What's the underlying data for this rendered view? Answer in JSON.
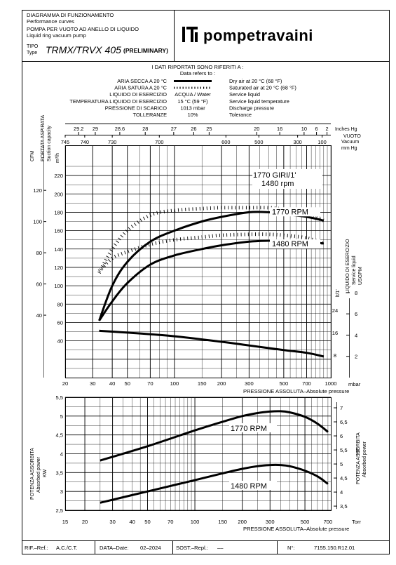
{
  "header": {
    "title_it": "DIAGRAMMA DI FUNZIONAMENTO",
    "title_en": "Performance curves",
    "subtitle_it": "POMPA PER VUOTO AD ANELLO DI LIQUIDO",
    "subtitle_en": "Liquid ring vacuum pump",
    "type_label_it": "TIPO",
    "type_label_en": "Type",
    "model": "TRMX/TRVX 405",
    "model_note": "(PRELIMINARY)",
    "logo_text": "pompetravaini"
  },
  "conditions": {
    "heading": "I DATI RIPORTATI SONO RIFERITI A :",
    "heading_en": "Data refers to :",
    "rows": [
      {
        "it": "ARIA SECCA A 20 °C",
        "value": "",
        "en": "Dry air at 20 °C (68 °F)",
        "line": "solid"
      },
      {
        "it": "ARIA SATURA A 20 °C",
        "value": "",
        "en": "Saturated air at 20 °C (68 °F)",
        "line": "dashed"
      },
      {
        "it": "LIQUIDO DI ESERCIZIO",
        "value": "ACQUA / Water",
        "en": "Service liquid",
        "line": ""
      },
      {
        "it": "TEMPERATURA LIQUIDO DI ESERCIZIO",
        "value": "15 °C (59 °F)",
        "en": "Service liquid temperature",
        "line": ""
      },
      {
        "it": "PRESSIONE DI SCARICO",
        "value": "1013 mbar",
        "en": "Discharge pressure",
        "line": ""
      },
      {
        "it": "TOLLERANZE",
        "value": "10%",
        "en": "Tolerance",
        "line": ""
      }
    ]
  },
  "chart_data": [
    {
      "type": "line",
      "name": "capacity",
      "xscale": "log",
      "xlim": [
        20,
        1000
      ],
      "ylim": [
        0,
        230
      ],
      "x_ticks": [
        20,
        30,
        40,
        50,
        70,
        100,
        150,
        200,
        300,
        500,
        700,
        1000
      ],
      "x_tick_labels": [
        "20",
        "30",
        "40",
        "50",
        "70",
        "100",
        "150",
        "200",
        "300",
        "500",
        "700",
        "1000"
      ],
      "x_unit": "mbar",
      "xlabel": "PRESSIONE ASSOLUTA–Absolute pressure",
      "y_left_label_it": "PORTATA ASPIRATA",
      "y_left_label_en": "Suction capacity",
      "y_left_unit": "m³/h",
      "y_left_ticks": [
        40,
        60,
        80,
        100,
        120,
        140,
        160,
        180,
        200,
        220
      ],
      "cfm_label": "CFM",
      "cfm_ticks": [
        40,
        60,
        80,
        100,
        120
      ],
      "top_scale_hg_label": "Inches Hg",
      "top_scale_vuoto_label": "VUOTO",
      "top_scale_vacuum_label": "Vacuum",
      "top_scale_mmhg_label": "mm Hg",
      "top_inches_hg": [
        "29.2",
        "29",
        "28.6",
        "28",
        "27",
        "26",
        "25",
        "20",
        "16",
        "10",
        "6",
        "2"
      ],
      "top_mm_hg": [
        "745",
        "740",
        "730",
        "700",
        "600",
        "500",
        "300",
        "100"
      ],
      "right_label_it": "LIQUIDO DI ESERCIZIO",
      "right_label_en": "Service liquid",
      "right_unit_lt": "lt/1'",
      "right_unit_usgpm": "USGPM",
      "right_lt_ticks": [
        "8",
        "16",
        "24"
      ],
      "right_usgpm_ticks": [
        "2",
        "4",
        "6",
        "8"
      ],
      "annotation_speed": "1770 GIRI/1'",
      "annotation_rpm": "1480 rpm",
      "series": [
        {
          "name": "1770 RPM",
          "line": "solid",
          "x": [
            33,
            40,
            50,
            70,
            100,
            150,
            200,
            300,
            400,
            500,
            700,
            900
          ],
          "y": [
            62,
            100,
            126,
            148,
            160,
            170,
            175,
            180,
            180,
            178,
            175,
            171
          ]
        },
        {
          "name": "1480 RPM",
          "line": "solid",
          "x": [
            33,
            40,
            50,
            70,
            100,
            150,
            200,
            300,
            400,
            500,
            700,
            900
          ],
          "y": [
            62,
            83,
            103,
            123,
            133,
            140,
            144,
            148,
            149,
            149,
            148,
            146
          ]
        },
        {
          "name": "",
          "line": "dashed",
          "x": [
            33,
            40,
            50,
            70,
            100,
            150,
            200,
            300,
            400,
            500,
            700,
            900
          ],
          "y": [
            114,
            140,
            160,
            177,
            182,
            184,
            185,
            185,
            185,
            183,
            177,
            171
          ]
        },
        {
          "name": "",
          "line": "dashed",
          "x": [
            33,
            40,
            50,
            70,
            100,
            150,
            200,
            300,
            400,
            500,
            700,
            900
          ],
          "y": [
            116,
            130,
            137,
            145,
            150,
            153,
            155,
            156,
            156,
            155,
            152,
            146
          ]
        },
        {
          "name": "",
          "line": "solid",
          "x": [
            33,
            50,
            100,
            200,
            300,
            500,
            700,
            900
          ],
          "y": [
            51,
            49,
            45,
            39,
            35,
            30,
            27,
            23
          ]
        }
      ]
    },
    {
      "type": "line",
      "name": "power",
      "xscale": "log",
      "xlim": [
        15,
        730
      ],
      "ylim": [
        2.5,
        5.5
      ],
      "x_ticks": [
        15,
        20,
        30,
        40,
        50,
        70,
        100,
        150,
        200,
        300,
        500,
        700
      ],
      "x_tick_labels": [
        "15",
        "20",
        "30",
        "40",
        "50",
        "70",
        "100",
        "150",
        "200",
        "300",
        "500",
        "700"
      ],
      "x_unit": "Torr",
      "xlabel": "PRESSIONE ASSOLUTA–Absolute pressure",
      "y_left_label_it": "POTENZA ASSORBITA",
      "y_left_label_en": "Absorbed power",
      "y_left_unit": "KW",
      "y_left_ticks": [
        2.5,
        3,
        3.5,
        4,
        4.5,
        5,
        5.5
      ],
      "y_left_tick_labels": [
        "2,5",
        "3",
        "3,5",
        "4",
        "4,5",
        "5",
        "5,5"
      ],
      "y_right_label_it": "POTENZA ASSORBITA",
      "y_right_label_en": "Absorbed power",
      "y_right_unit": "HP",
      "y_right_ticks": [
        "3,5",
        "4",
        "4,5",
        "5",
        "5,5",
        "6",
        "6,5",
        "7"
      ],
      "series": [
        {
          "name": "1770 RPM",
          "line": "solid",
          "x": [
            25,
            50,
            100,
            150,
            200,
            250,
            300,
            350,
            400,
            500,
            600,
            700
          ],
          "y": [
            3.82,
            4.2,
            4.62,
            4.85,
            5.0,
            5.08,
            5.12,
            5.13,
            5.1,
            4.98,
            4.8,
            4.58
          ]
        },
        {
          "name": "1480 RPM",
          "line": "solid",
          "x": [
            25,
            50,
            100,
            150,
            200,
            250,
            300,
            350,
            400,
            500,
            600,
            700
          ],
          "y": [
            2.7,
            3.0,
            3.3,
            3.48,
            3.6,
            3.67,
            3.7,
            3.7,
            3.67,
            3.55,
            3.4,
            3.2
          ]
        }
      ]
    }
  ],
  "footer": {
    "ref_label": "RIF.–Ref.:",
    "ref_value": "A.C./C.T.",
    "date_label": "DATA–Date:",
    "date_value": "02–2024",
    "replaces_label": "SOST.–Repl.:",
    "replaces_value": "––",
    "number_label": "N°:",
    "number_value": "7155.150.R12.01"
  }
}
